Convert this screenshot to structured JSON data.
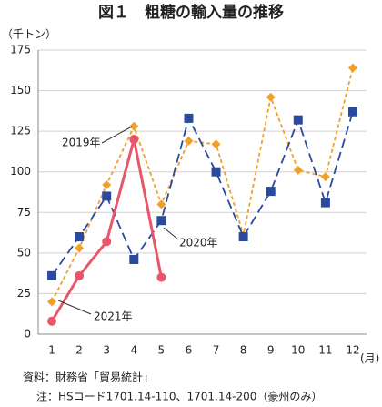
{
  "chart_data": {
    "type": "line",
    "title": "図１　粗糖の輸入量の推移",
    "y_unit": "（千トン）",
    "x_unit": "(月)",
    "categories": [
      "1",
      "2",
      "3",
      "4",
      "5",
      "6",
      "7",
      "8",
      "9",
      "10",
      "11",
      "12"
    ],
    "series": [
      {
        "name": "2019年",
        "color": "#f0a028",
        "marker": "diamond",
        "dash": "4,3",
        "values": [
          20,
          53,
          92,
          128,
          80,
          119,
          117,
          61,
          146,
          101,
          97,
          164
        ]
      },
      {
        "name": "2020年",
        "color": "#2a4a9e",
        "marker": "square",
        "dash": "10,5",
        "values": [
          36,
          60,
          85,
          46,
          70,
          133,
          100,
          60,
          88,
          132,
          81,
          137
        ]
      },
      {
        "name": "2021年",
        "color": "#e8566a",
        "marker": "circle",
        "dash": "",
        "values": [
          8,
          36,
          57,
          120,
          35,
          null,
          null,
          null,
          null,
          null,
          null,
          null
        ]
      }
    ],
    "ylim": [
      0,
      175
    ],
    "yticks": [
      0,
      25,
      50,
      75,
      100,
      125,
      150,
      175
    ],
    "grid": true,
    "notes": [
      "資料：財務省「貿易統計」",
      "注：HSコード1701.14-110、1701.14-200（豪州のみ）"
    ]
  }
}
